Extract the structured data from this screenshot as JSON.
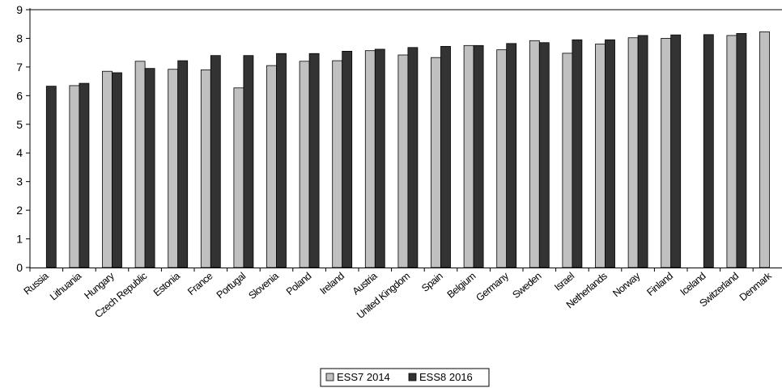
{
  "chart_data": {
    "type": "bar",
    "categories": [
      "Russia",
      "Lithuania",
      "Hungary",
      "Czech Republic",
      "Estonia",
      "France",
      "Portugal",
      "Slovenia",
      "Poland",
      "Ireland",
      "Austria",
      "United Kingdom",
      "Spain",
      "Belgium",
      "Germany",
      "Sweden",
      "Israel",
      "Netherlands",
      "Norway",
      "Finland",
      "Iceland",
      "Switzerland",
      "Denmark"
    ],
    "series": [
      {
        "name": "ESS7 2014",
        "color": "#c0c0c0",
        "values": [
          null,
          6.35,
          6.85,
          7.2,
          6.92,
          6.9,
          6.27,
          7.05,
          7.2,
          7.22,
          7.57,
          7.42,
          7.33,
          7.75,
          7.6,
          7.92,
          7.48,
          7.8,
          8.02,
          8.0,
          null,
          8.1,
          8.23
        ]
      },
      {
        "name": "ESS8 2016",
        "color": "#333333",
        "values": [
          6.33,
          6.43,
          6.8,
          6.95,
          7.22,
          7.4,
          7.4,
          7.47,
          7.47,
          7.55,
          7.62,
          7.68,
          7.72,
          7.75,
          7.82,
          7.85,
          7.95,
          7.95,
          8.1,
          8.12,
          8.13,
          8.17,
          null
        ]
      }
    ],
    "ylim": [
      0,
      9
    ],
    "yticks": [
      "0",
      "1",
      "2",
      "3",
      "4",
      "5",
      "6",
      "7",
      "8",
      "9"
    ],
    "grid": "horizontal line at maximum only",
    "legend_position": "bottom-center",
    "title": "",
    "xlabel": "",
    "ylabel": ""
  }
}
